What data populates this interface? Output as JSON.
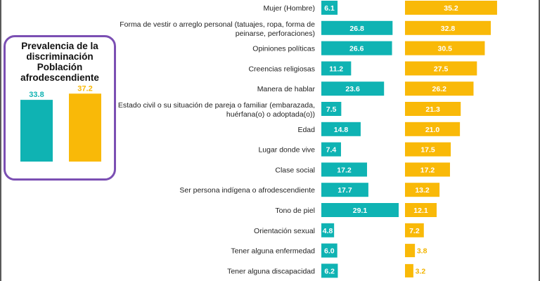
{
  "colors": {
    "teal": "#0fb3b3",
    "yellow": "#f9b908",
    "purple": "#7b4fb3"
  },
  "summary": {
    "title_lines": [
      "Prevalencia de la",
      "discriminación",
      "Población",
      "afrodescendiente"
    ],
    "values": [
      33.8,
      37.2
    ]
  },
  "chart_data": {
    "type": "bar",
    "orientation": "horizontal",
    "categories": [
      "Mujer (Hombre)",
      "Forma de vestir o arreglo personal (tatuajes, ropa, forma de peinarse, perforaciones)",
      "Opiniones políticas",
      "Creencias religiosas",
      "Manera de hablar",
      "Estado civil o su situación de pareja o familiar (embarazada, huérfana(o) o adoptada(o))",
      "Edad",
      "Lugar donde vive",
      "Clase social",
      "Ser persona indígena o afrodescendiente",
      "Tono de piel",
      "Orientación sexual",
      "Tener alguna enfermedad",
      "Tener alguna discapacidad"
    ],
    "category_lines": [
      [
        "Mujer (Hombre)"
      ],
      [
        "Forma de vestir o arreglo personal (tatuajes, ropa, forma de",
        "peinarse, perforaciones)"
      ],
      [
        "Opiniones políticas"
      ],
      [
        "Creencias religiosas"
      ],
      [
        "Manera de hablar"
      ],
      [
        "Estado civil o su situación de pareja o familiar (embarazada,",
        "huérfana(o) o adoptada(o))"
      ],
      [
        "Edad"
      ],
      [
        "Lugar donde vive"
      ],
      [
        "Clase social"
      ],
      [
        "Ser persona indígena o afrodescendiente"
      ],
      [
        "Tono de piel"
      ],
      [
        "Orientación sexual"
      ],
      [
        "Tener alguna enfermedad"
      ],
      [
        "Tener alguna discapacidad"
      ]
    ],
    "series": [
      {
        "values": [
          6.1,
          26.8,
          26.6,
          11.2,
          23.6,
          7.5,
          14.8,
          7.4,
          17.2,
          17.7,
          29.1,
          4.8,
          6.0,
          6.2
        ]
      },
      {
        "values": [
          35.2,
          32.8,
          30.5,
          27.5,
          26.2,
          21.3,
          21.0,
          17.5,
          17.2,
          13.2,
          12.1,
          7.2,
          3.8,
          3.2
        ]
      }
    ]
  }
}
